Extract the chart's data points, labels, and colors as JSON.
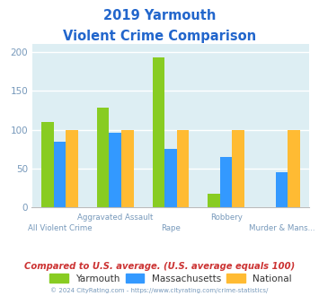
{
  "title_line1": "2019 Yarmouth",
  "title_line2": "Violent Crime Comparison",
  "title_color": "#2266cc",
  "categories_top": [
    "Aggravated Assault",
    "Robbery"
  ],
  "categories_bottom": [
    "All Violent Crime",
    "Rape",
    "Murder & Mans..."
  ],
  "categories_all": [
    "All Violent Crime",
    "Aggravated Assault",
    "Rape",
    "Robbery",
    "Murder & Mans..."
  ],
  "series": {
    "Yarmouth": [
      110,
      128,
      193,
      17,
      0
    ],
    "Massachusetts": [
      85,
      96,
      75,
      65,
      45
    ],
    "National": [
      100,
      100,
      100,
      100,
      100
    ]
  },
  "colors": {
    "Yarmouth": "#88cc22",
    "Massachusetts": "#3399ff",
    "National": "#ffbb33"
  },
  "ylim": [
    0,
    210
  ],
  "yticks": [
    0,
    50,
    100,
    150,
    200
  ],
  "plot_bg": "#ddeef3",
  "footer_text": "Compared to U.S. average. (U.S. average equals 100)",
  "footer_color": "#cc3333",
  "copyright_text": "© 2024 CityRating.com - https://www.cityrating.com/crime-statistics/",
  "copyright_color": "#7799bb",
  "grid_color": "#ffffff",
  "tick_label_color": "#7799bb",
  "bar_width": 0.22
}
